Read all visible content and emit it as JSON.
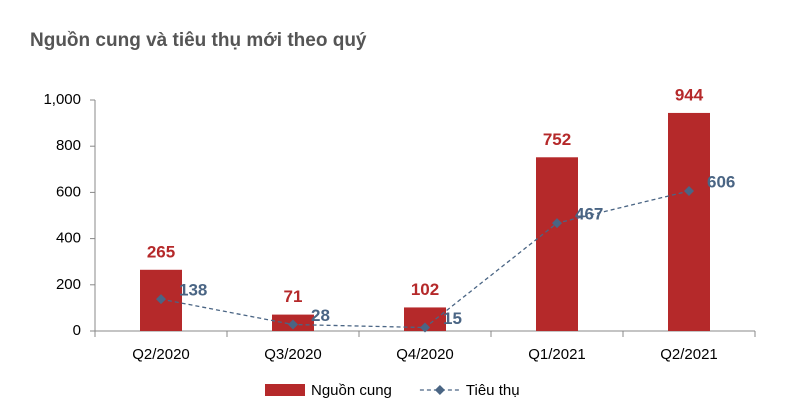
{
  "chart_data": {
    "type": "bar",
    "title": "Nguồn cung và tiêu thụ mới theo quý",
    "categories": [
      "Q2/2020",
      "Q3/2020",
      "Q4/2020",
      "Q1/2021",
      "Q2/2021"
    ],
    "series": [
      {
        "name": "Nguồn cung",
        "type": "bar",
        "color": "#b5292a",
        "values": [
          265,
          71,
          102,
          752,
          944
        ]
      },
      {
        "name": "Tiêu thụ",
        "type": "line",
        "color": "#4a6584",
        "values": [
          138,
          28,
          15,
          467,
          606
        ]
      }
    ],
    "ylim": [
      0,
      1000
    ],
    "yticks": [
      0,
      200,
      400,
      600,
      800,
      {
        "value": 1000,
        "label": "1,000"
      }
    ],
    "grid": false,
    "legend": "bottom"
  }
}
